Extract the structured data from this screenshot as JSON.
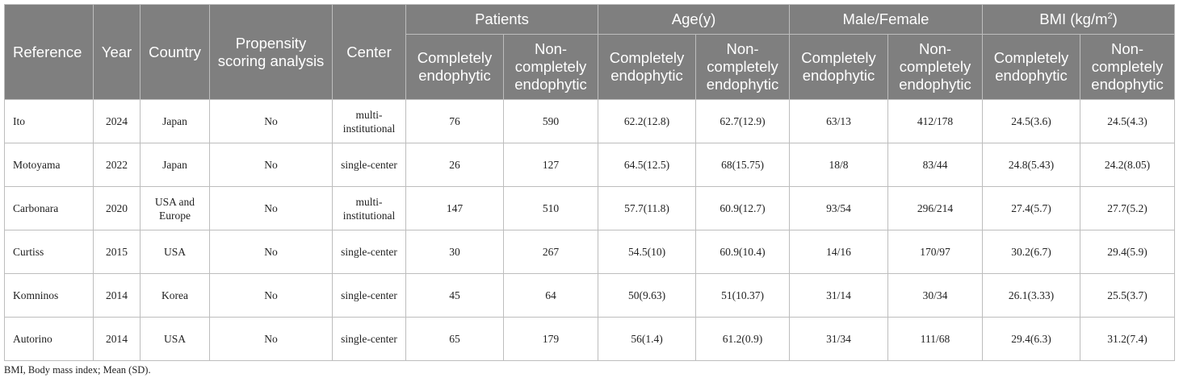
{
  "header": {
    "reference": "Reference",
    "year": "Year",
    "country": "Country",
    "propensity": "Propensity scoring analysis",
    "center": "Center",
    "patients": "Patients",
    "age": "Age(y)",
    "male_female": "Male/Female",
    "bmi_prefix": "BMI (kg/m",
    "bmi_sup": "2",
    "bmi_suffix": ")",
    "completely": "Completely endophytic",
    "non_completely": "Non-completely endophytic"
  },
  "rows": [
    {
      "reference": "Ito",
      "year": "2024",
      "country": "Japan",
      "propensity": "No",
      "center": "multi-institutional",
      "patients_c": "76",
      "patients_n": "590",
      "age_c": "62.2(12.8)",
      "age_n": "62.7(12.9)",
      "mf_c": "63/13",
      "mf_n": "412/178",
      "bmi_c": "24.5(3.6)",
      "bmi_n": "24.5(4.3)"
    },
    {
      "reference": "Motoyama",
      "year": "2022",
      "country": "Japan",
      "propensity": "No",
      "center": "single-center",
      "patients_c": "26",
      "patients_n": "127",
      "age_c": "64.5(12.5)",
      "age_n": "68(15.75)",
      "mf_c": "18/8",
      "mf_n": "83/44",
      "bmi_c": "24.8(5.43)",
      "bmi_n": "24.2(8.05)"
    },
    {
      "reference": "Carbonara",
      "year": "2020",
      "country": "USA and Europe",
      "propensity": "No",
      "center": "multi-institutional",
      "patients_c": "147",
      "patients_n": "510",
      "age_c": "57.7(11.8)",
      "age_n": "60.9(12.7)",
      "mf_c": "93/54",
      "mf_n": "296/214",
      "bmi_c": "27.4(5.7)",
      "bmi_n": "27.7(5.2)"
    },
    {
      "reference": "Curtiss",
      "year": "2015",
      "country": "USA",
      "propensity": "No",
      "center": "single-center",
      "patients_c": "30",
      "patients_n": "267",
      "age_c": "54.5(10)",
      "age_n": "60.9(10.4)",
      "mf_c": "14/16",
      "mf_n": "170/97",
      "bmi_c": "30.2(6.7)",
      "bmi_n": "29.4(5.9)"
    },
    {
      "reference": "Komninos",
      "year": "2014",
      "country": "Korea",
      "propensity": "No",
      "center": "single-center",
      "patients_c": "45",
      "patients_n": "64",
      "age_c": "50(9.63)",
      "age_n": "51(10.37)",
      "mf_c": "31/14",
      "mf_n": "30/34",
      "bmi_c": "26.1(3.33)",
      "bmi_n": "25.5(3.7)"
    },
    {
      "reference": "Autorino",
      "year": "2014",
      "country": "USA",
      "propensity": "No",
      "center": "single-center",
      "patients_c": "65",
      "patients_n": "179",
      "age_c": "56(1.4)",
      "age_n": "61.2(0.9)",
      "mf_c": "31/34",
      "mf_n": "111/68",
      "bmi_c": "29.4(6.3)",
      "bmi_n": "31.2(7.4)"
    }
  ],
  "footnote": "BMI, Body mass index; Mean (SD)."
}
